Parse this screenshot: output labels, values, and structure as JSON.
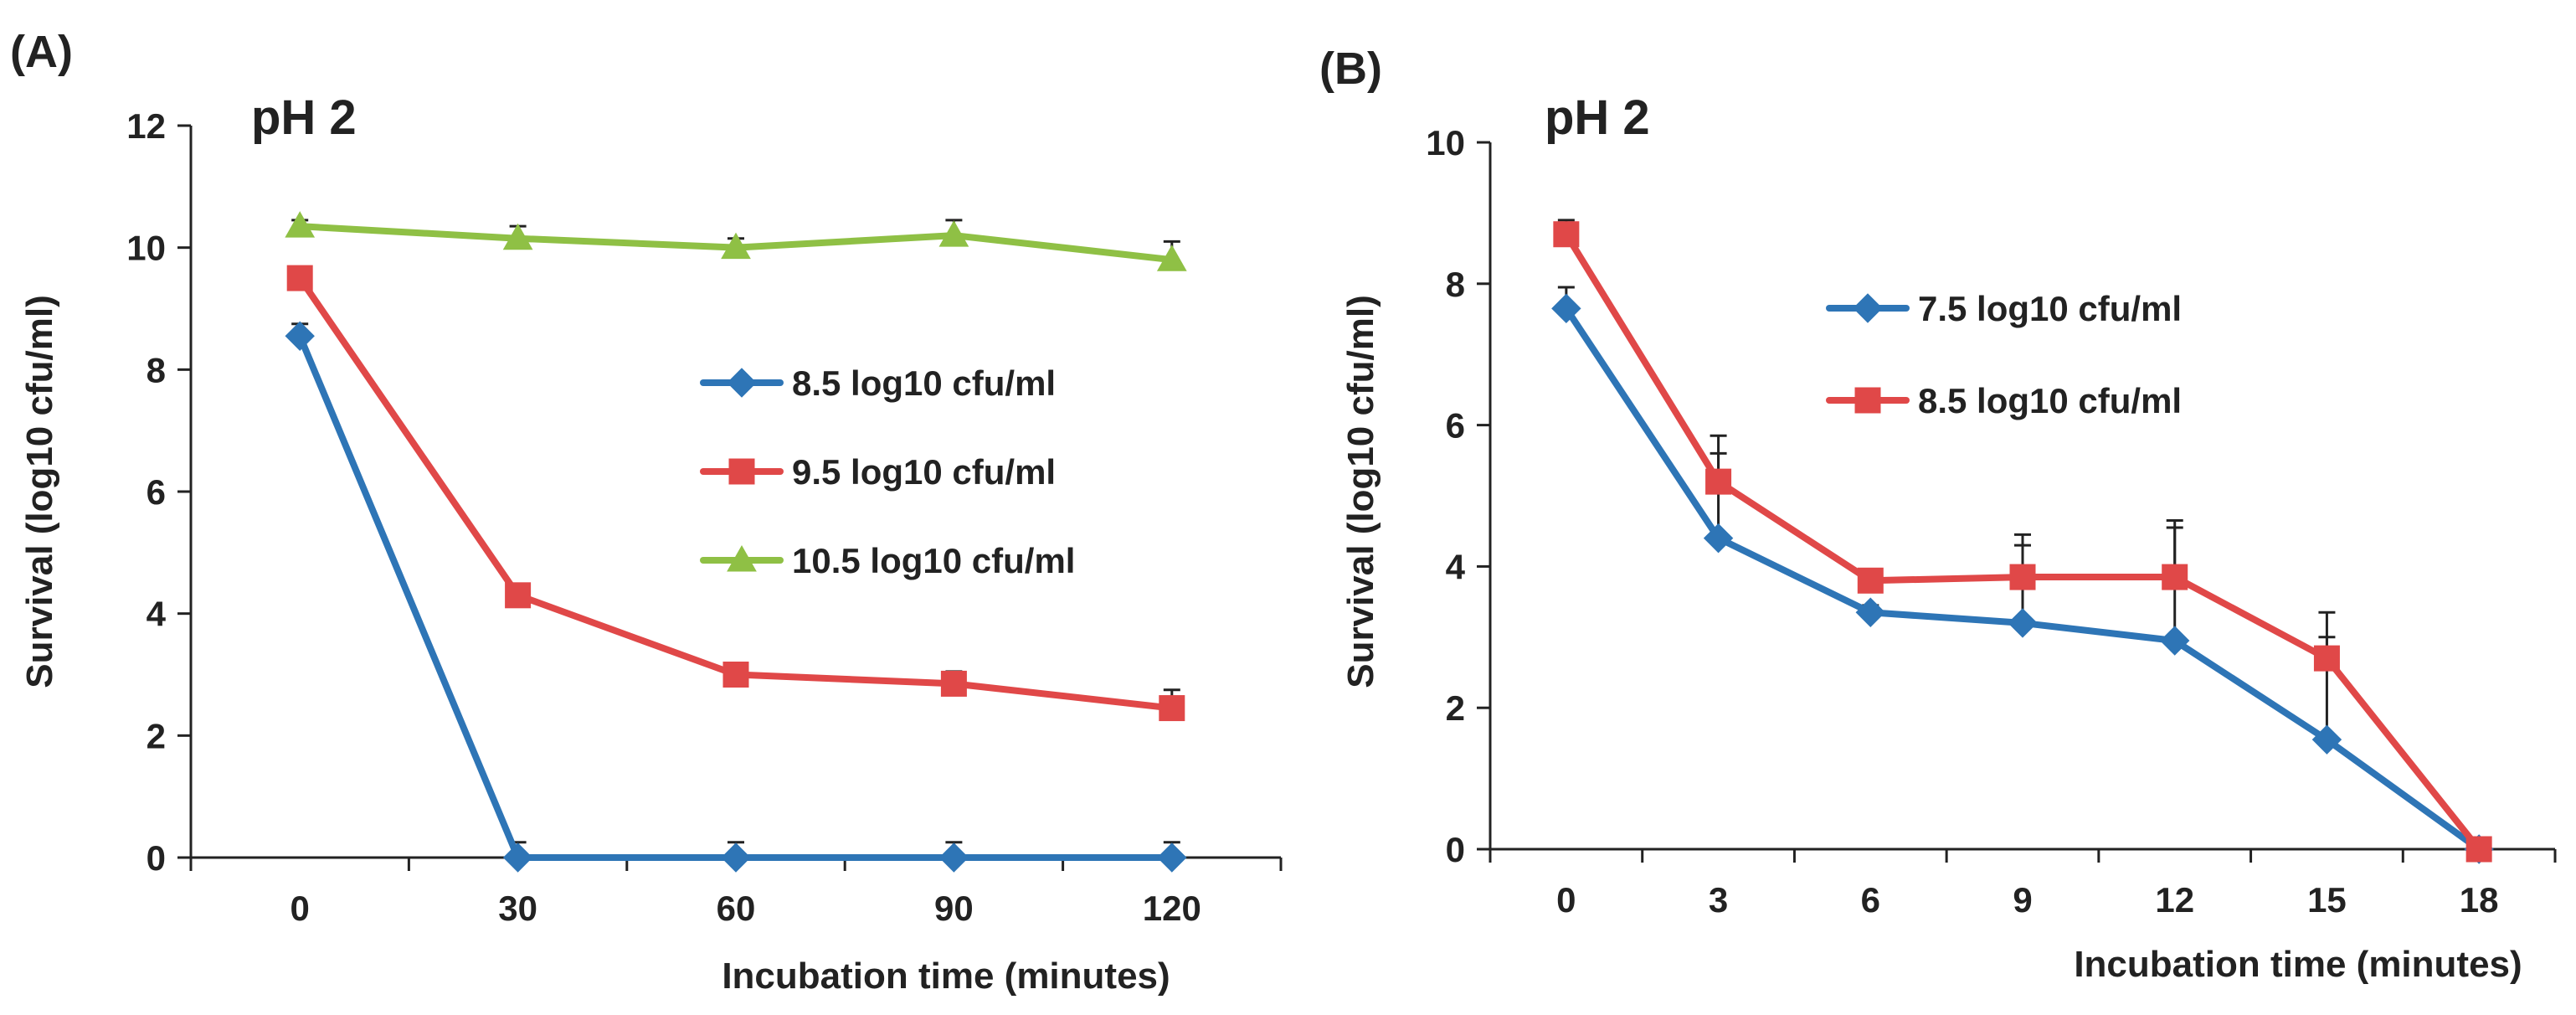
{
  "chart_data": [
    {
      "type": "line",
      "panel_label": "(A)",
      "title": "pH 2",
      "xlabel": "Incubation time (minutes)",
      "ylabel": "Survival (log10 cfu/ml)",
      "x": [
        0,
        30,
        60,
        90,
        120
      ],
      "ylim": [
        0,
        12
      ],
      "yticks": [
        0,
        2,
        4,
        6,
        8,
        10,
        12
      ],
      "grid": false,
      "legend_position": "center-right",
      "series": [
        {
          "name": "8.5 log10 cfu/ml",
          "color": "#2e75b6",
          "marker": "diamond",
          "values": [
            8.55,
            0,
            0,
            0,
            0
          ],
          "errors": [
            0.2,
            0.25,
            0.25,
            0.25,
            0.25
          ]
        },
        {
          "name": "9.5 log10 cfu/ml",
          "color": "#e04848",
          "marker": "square",
          "values": [
            9.5,
            4.3,
            3.0,
            2.85,
            2.45
          ],
          "errors": [
            0.15,
            0.15,
            0.1,
            0.2,
            0.3
          ]
        },
        {
          "name": "10.5 log10 cfu/ml",
          "color": "#8fc045",
          "marker": "triangle",
          "values": [
            10.35,
            10.15,
            10.0,
            10.2,
            9.8
          ],
          "errors": [
            0.1,
            0.2,
            0.15,
            0.25,
            0.3
          ]
        }
      ]
    },
    {
      "type": "line",
      "panel_label": "(B)",
      "title": "pH 2",
      "xlabel": "Incubation time (minutes)",
      "ylabel": "Survival (log10 cfu/ml)",
      "x": [
        0,
        3,
        6,
        9,
        12,
        15,
        18
      ],
      "ylim": [
        0,
        10
      ],
      "yticks": [
        0,
        2,
        4,
        6,
        8,
        10
      ],
      "grid": false,
      "legend_position": "top-right",
      "series": [
        {
          "name": "7.5 log10 cfu/ml",
          "color": "#2e75b6",
          "marker": "diamond",
          "values": [
            7.65,
            4.4,
            3.35,
            3.2,
            2.95,
            1.55,
            0
          ],
          "errors": [
            0.3,
            1.2,
            0.1,
            1.1,
            1.6,
            1.45,
            0
          ]
        },
        {
          "name": "8.5 log10  cfu/ml",
          "color": "#e04848",
          "marker": "square",
          "values": [
            8.7,
            5.2,
            3.8,
            3.85,
            3.85,
            2.7,
            0
          ],
          "errors": [
            0.2,
            0.65,
            0.1,
            0.6,
            0.8,
            0.65,
            0
          ]
        }
      ]
    }
  ]
}
